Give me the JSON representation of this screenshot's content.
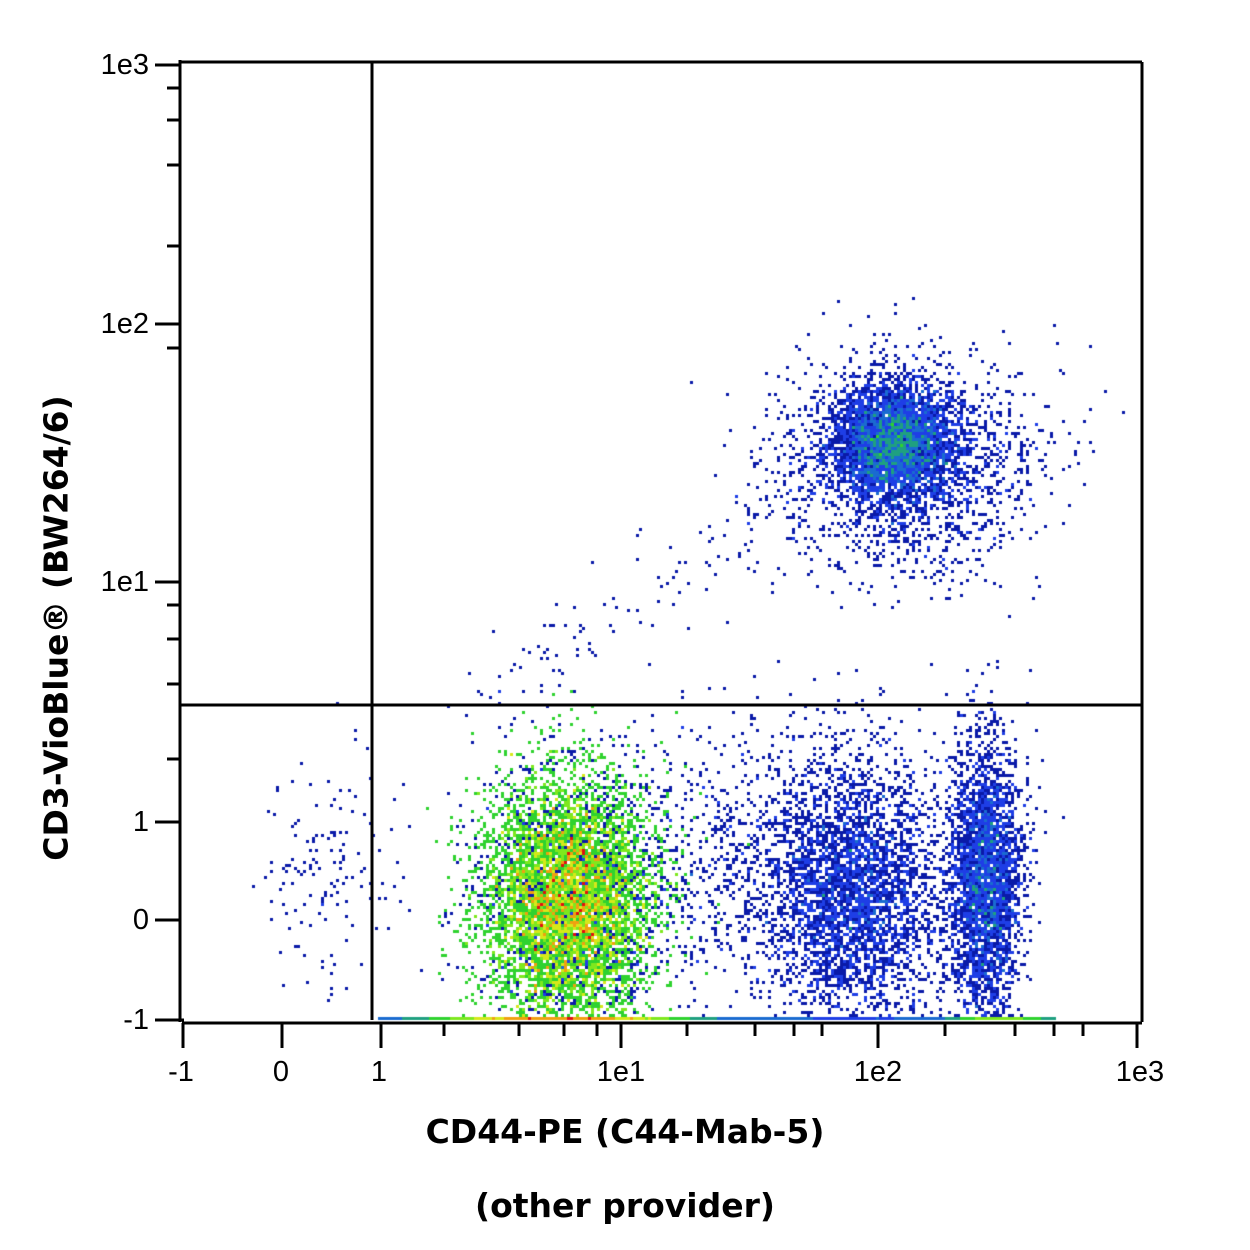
{
  "chart_data": {
    "type": "scatter",
    "subtype": "flow-cytometry-density-dot-plot",
    "title": "",
    "xlabel": "CD44-PE (C44-Mab-5)",
    "xlabel_sub": "(other provider)",
    "ylabel": "CD3-VioBlue® (BW264/6)",
    "x_scale": "biexponential",
    "y_scale": "biexponential",
    "x_ticks": [
      "-1",
      "0",
      "1",
      "1e1",
      "1e2",
      "1e3"
    ],
    "y_ticks": [
      "-1",
      "0",
      "1",
      "1e1",
      "1e2",
      "1e3"
    ],
    "xlim": [
      -1,
      1000
    ],
    "ylim": [
      -1,
      1000
    ],
    "grid": false,
    "legend": null,
    "gates": {
      "type": "quadrant",
      "x_threshold": 0.9,
      "y_threshold": 3.5,
      "quadrants": [
        "Q1 upper-left",
        "Q2 upper-right",
        "Q3 lower-left",
        "Q4 lower-right"
      ]
    },
    "populations": [
      {
        "name": "CD44+ CD3- (main, lower-middle)",
        "x_center": 6,
        "y_center": 0.2,
        "x_range": [
          2,
          12
        ],
        "y_range": [
          -1,
          2
        ],
        "density": "highest",
        "quadrant": "lower-right"
      },
      {
        "name": "CD44++ CD3+ (upper-right)",
        "x_center": 110,
        "y_center": 35,
        "x_range": [
          40,
          500
        ],
        "y_range": [
          10,
          80
        ],
        "density": "medium",
        "quadrant": "upper-right"
      },
      {
        "name": "CD44+ CD3- (scattered, lower-right)",
        "x_center": 110,
        "y_center": 0.3,
        "x_range": [
          40,
          180
        ],
        "y_range": [
          -1,
          2.5
        ],
        "density": "low",
        "quadrant": "lower-right"
      },
      {
        "name": "CD44++ CD3- (band at ~250)",
        "x_center": 260,
        "y_center": 0.5,
        "x_range": [
          200,
          420
        ],
        "y_range": [
          -1,
          3
        ],
        "density": "medium-low",
        "quadrant": "lower-right"
      },
      {
        "name": "sparse negatives",
        "x_center": 0.3,
        "y_center": 0.3,
        "x_range": [
          -0.6,
          0.9
        ],
        "y_range": [
          -1,
          2
        ],
        "density": "very low",
        "quadrant": "lower-left"
      }
    ],
    "colormap": [
      "#0a1aa8",
      "#1e3ee6",
      "#1a6bd0",
      "#1fa080",
      "#2fd22f",
      "#7ee81e",
      "#d6e81a",
      "#f0a010",
      "#e01010"
    ]
  },
  "plot": {
    "axis_color": "#000000",
    "background": "#ffffff"
  },
  "labels": {
    "x_title": "CD44-PE (C44-Mab-5)",
    "x_subtitle": "(other provider)",
    "y_title": "CD3-VioBlue® (BW264/6)",
    "x_ticks": [
      "-1",
      "0",
      "1",
      "1e1",
      "1e2",
      "1e3"
    ],
    "y_ticks": [
      "1e3",
      "1e2",
      "1e1",
      "1",
      "0",
      "-1"
    ]
  }
}
